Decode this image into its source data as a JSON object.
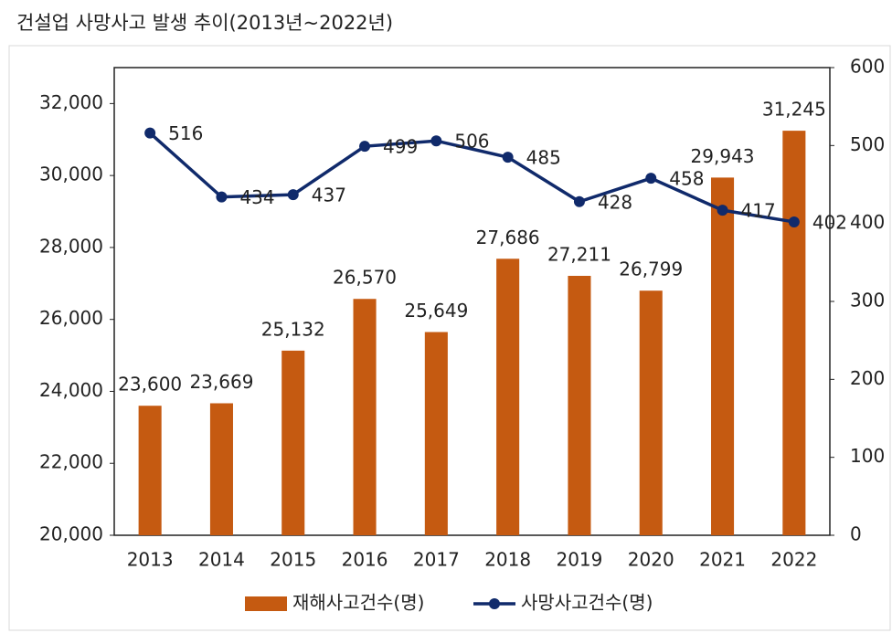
{
  "chart_data": {
    "type": "bar_line",
    "title": "건설업 사망사고 발생 추이(2013년~2022년)",
    "categories": [
      "2013",
      "2014",
      "2015",
      "2016",
      "2017",
      "2018",
      "2019",
      "2020",
      "2021",
      "2022"
    ],
    "series": [
      {
        "name": "재해사고건수(명)",
        "type": "bar",
        "color": "#c55a11",
        "axis": "y",
        "values": [
          23600,
          23669,
          25132,
          26570,
          25649,
          27686,
          27211,
          26799,
          29943,
          31245
        ],
        "value_labels": [
          "23,600",
          "23,669",
          "25,132",
          "26,570",
          "25,649",
          "27,686",
          "27,211",
          "26,799",
          "29,943",
          "31,245"
        ]
      },
      {
        "name": "사망사고건수(명)",
        "type": "line",
        "color": "#102a6b",
        "axis": "y2",
        "values": [
          516,
          434,
          437,
          499,
          506,
          485,
          428,
          458,
          417,
          402
        ]
      }
    ],
    "ylim": [
      20000,
      33000
    ],
    "yticks": [
      {
        "value": 20000,
        "label": "20,000"
      },
      {
        "value": 22000,
        "label": "22,000"
      },
      {
        "value": 24000,
        "label": "24,000"
      },
      {
        "value": 26000,
        "label": "26,000"
      },
      {
        "value": 28000,
        "label": "28,000"
      },
      {
        "value": 30000,
        "label": "30,000"
      },
      {
        "value": 32000,
        "label": "32,000"
      }
    ],
    "y2lim": [
      0,
      600
    ],
    "y2ticks": [
      0,
      100,
      200,
      300,
      400,
      500,
      600
    ],
    "grid": false,
    "legend": "bottom"
  }
}
